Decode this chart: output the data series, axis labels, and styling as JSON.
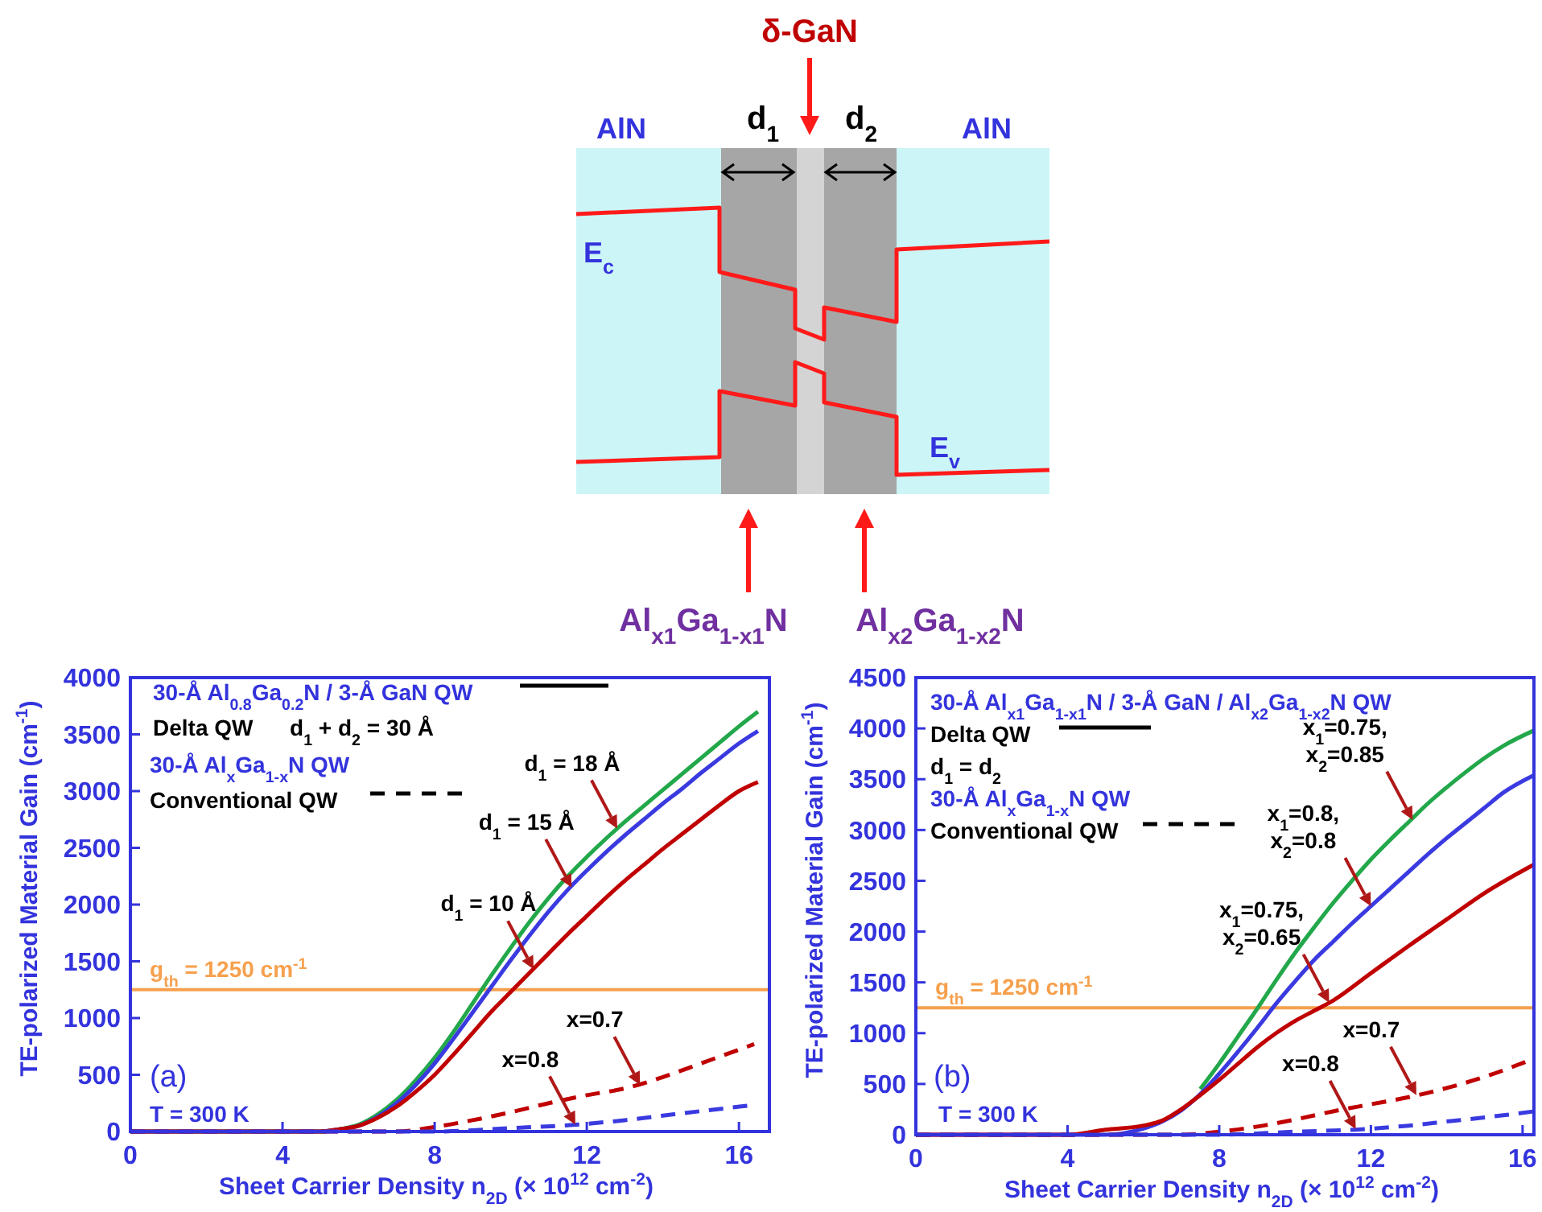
{
  "chart_data": [
    {
      "type": "other",
      "annotations": [
        "δ-GaN",
        "AlN",
        "AlN",
        "d$_{1}$",
        "d$_{2}$",
        "E$_{c}$",
        "E$_{v}$",
        "Al$_{x1}$Ga$_{1-x1}$N",
        "Al$_{x2}$Ga$_{1-x2}$N"
      ]
    },
    {
      "type": "line",
      "xlabel": "Sheet Carrier Density n$_{2D}$ (× 10$^{12}$ cm$^{-2}$)",
      "ylabel": "TE-polarized Material Gain (cm$^{-1}$)",
      "xlim": [
        0,
        16.8
      ],
      "ylim": [
        0,
        4000
      ],
      "xticks": [
        0,
        4,
        8,
        12,
        16
      ],
      "yticks": [
        0,
        500,
        1000,
        1500,
        2000,
        2500,
        3000,
        3500,
        4000
      ],
      "grid": false,
      "series": [
        {
          "color": "#22a84a",
          "line_style": "solid",
          "x": [
            0,
            5,
            5.5,
            6,
            6.5,
            7,
            7.5,
            8,
            8.5,
            9,
            9.5,
            10,
            10.5,
            11,
            11.5,
            12,
            12.5,
            13,
            13.5,
            14,
            14.5,
            15,
            15.5,
            16,
            16.5
          ],
          "values": [
            0,
            0,
            20,
            60,
            150,
            280,
            450,
            650,
            880,
            1130,
            1380,
            1620,
            1850,
            2060,
            2250,
            2420,
            2580,
            2730,
            2870,
            3010,
            3150,
            3290,
            3430,
            3570,
            3700
          ]
        },
        {
          "color": "#3a3ae0",
          "line_style": "solid",
          "x": [
            0,
            5,
            5.5,
            6,
            6.5,
            7,
            7.5,
            8,
            8.5,
            9,
            9.5,
            10,
            10.5,
            11,
            11.5,
            12,
            12.5,
            13,
            13.5,
            14,
            14.5,
            15,
            15.5,
            16,
            16.5
          ],
          "values": [
            0,
            0,
            20,
            50,
            130,
            250,
            410,
            600,
            820,
            1050,
            1280,
            1510,
            1730,
            1940,
            2130,
            2300,
            2460,
            2610,
            2750,
            2890,
            3020,
            3160,
            3290,
            3420,
            3530
          ]
        },
        {
          "color": "#c00000",
          "line_style": "solid",
          "x": [
            0,
            5,
            5.5,
            6,
            6.5,
            7,
            7.5,
            8,
            8.5,
            9,
            9.5,
            10,
            10.5,
            11,
            11.5,
            12,
            12.5,
            13,
            13.5,
            14,
            14.5,
            15,
            15.5,
            16,
            16.5
          ],
          "values": [
            0,
            0,
            20,
            50,
            120,
            220,
            350,
            500,
            680,
            870,
            1060,
            1230,
            1400,
            1570,
            1740,
            1900,
            2060,
            2210,
            2350,
            2490,
            2620,
            2750,
            2880,
            3000,
            3080
          ]
        },
        {
          "color": "#c00000",
          "line_style": "dashed",
          "x": [
            0,
            7,
            8,
            9,
            10,
            11,
            12,
            13,
            14,
            15,
            16.4
          ],
          "values": [
            0,
            0,
            40,
            100,
            170,
            250,
            320,
            380,
            480,
            600,
            770
          ]
        },
        {
          "color": "#3a3ae0",
          "line_style": "dashed",
          "x": [
            0,
            8,
            10,
            11.7,
            13,
            14,
            15,
            16.3
          ],
          "values": [
            0,
            0,
            30,
            60,
            100,
            140,
            180,
            230
          ]
        }
      ],
      "ref_lines": [
        {
          "axis": "y",
          "value": 1250,
          "label": "g$_{th}$ = 1250 cm$^{-1}$",
          "color": "#f6a04d"
        }
      ],
      "annotations": [
        "30-Å Al$_{0.8}$Ga$_{0.2}$N / 3-Å GaN QW",
        "Delta QW",
        "d$_{1}$ + d$_{2}$ = 30 Å",
        "30-Å Al$_{x}$Ga$_{1-x}$N QW",
        "Conventional QW",
        "(a)",
        "T = 300 K",
        {
          "text": "d$_{1}$ = 18 Å",
          "x": 12.8,
          "y": 2670
        },
        {
          "text": "d$_{1}$ = 15 Å",
          "x": 11.6,
          "y": 2150
        },
        {
          "text": "d$_{1}$ = 10 Å",
          "x": 10.6,
          "y": 1430
        },
        {
          "text": "x=0.7",
          "x": 13.4,
          "y": 410
        },
        {
          "text": "x=0.8",
          "x": 11.7,
          "y": 60
        }
      ]
    },
    {
      "type": "line",
      "xlabel": "Sheet Carrier Density n$_{2D}$ (× 10$^{12}$ cm$^{-2}$)",
      "ylabel": "TE-polarized Material Gain (cm$^{-1}$)",
      "xlim": [
        0,
        16.3
      ],
      "ylim": [
        0,
        4500
      ],
      "xticks": [
        0,
        4,
        8,
        12,
        16
      ],
      "yticks": [
        0,
        500,
        1000,
        1500,
        2000,
        2500,
        3000,
        3500,
        4000,
        4500
      ],
      "grid": false,
      "series": [
        {
          "color": "#22a84a",
          "line_style": "solid",
          "x": [
            7.5,
            8,
            8.5,
            9,
            9.5,
            10,
            10.5,
            11,
            11.5,
            12,
            12.5,
            13,
            13.5,
            14,
            14.5,
            15,
            15.5,
            16.3
          ],
          "values": [
            450,
            700,
            970,
            1240,
            1520,
            1790,
            2040,
            2280,
            2500,
            2710,
            2900,
            3080,
            3260,
            3420,
            3570,
            3710,
            3830,
            3980
          ]
        },
        {
          "color": "#3a3ae0",
          "line_style": "solid",
          "x": [
            0,
            4,
            5,
            6,
            6.5,
            7,
            7.5,
            8,
            8.5,
            9,
            9.5,
            10,
            10.5,
            11,
            11.5,
            12,
            12.5,
            13,
            13.5,
            14,
            14.5,
            15,
            15.5,
            16.3
          ],
          "values": [
            0,
            0,
            0,
            60,
            130,
            240,
            400,
            600,
            820,
            1050,
            1290,
            1510,
            1720,
            1900,
            2080,
            2250,
            2420,
            2590,
            2760,
            2920,
            3070,
            3220,
            3370,
            3540
          ]
        },
        {
          "color": "#c00000",
          "line_style": "solid",
          "x": [
            0,
            3,
            4,
            5,
            6,
            6.5,
            7,
            7.5,
            8,
            8.5,
            9,
            9.5,
            10,
            10.5,
            11,
            12,
            13,
            14,
            15,
            16.3
          ],
          "values": [
            0,
            0,
            0,
            50,
            90,
            140,
            250,
            390,
            540,
            700,
            860,
            1000,
            1120,
            1220,
            1320,
            1590,
            1860,
            2120,
            2380,
            2660
          ]
        },
        {
          "color": "#c00000",
          "line_style": "dashed",
          "x": [
            0,
            7,
            8,
            9,
            10,
            11,
            12,
            13,
            14,
            15,
            16.3
          ],
          "values": [
            0,
            0,
            30,
            80,
            150,
            230,
            300,
            370,
            460,
            570,
            750
          ]
        },
        {
          "color": "#3a3ae0",
          "line_style": "dashed",
          "x": [
            0,
            8,
            10,
            11.6,
            13,
            14,
            15,
            16.3
          ],
          "values": [
            0,
            0,
            30,
            50,
            90,
            130,
            170,
            230
          ]
        }
      ],
      "ref_lines": [
        {
          "axis": "y",
          "value": 1250,
          "label": "g$_{th}$ = 1250 cm$^{-1}$",
          "color": "#f6a04d"
        }
      ],
      "annotations": [
        "30-Å Al$_{x1}$Ga$_{1-x1}$N / 3-Å GaN / Al$_{x2}$Ga$_{1-x2}$N  QW",
        "Delta QW",
        "d$_{1}$ = d$_{2}$",
        "30-Å Al$_{x}$Ga$_{1-x}$N QW",
        "Conventional QW",
        "(b)",
        "T = 300 K",
        {
          "text": "x$_{1}$=0.75, x$_{2}$=0.85",
          "x": 13.1,
          "y": 3100
        },
        {
          "text": "x$_{1}$=0.8, x$_{2}$=0.8",
          "x": 12.0,
          "y": 2250
        },
        {
          "text": "x$_{1}$=0.75, x$_{2}$=0.65",
          "x": 10.9,
          "y": 1300
        },
        {
          "text": "x=0.7",
          "x": 13.2,
          "y": 390
        },
        {
          "text": "x=0.8",
          "x": 11.6,
          "y": 55
        }
      ]
    }
  ]
}
